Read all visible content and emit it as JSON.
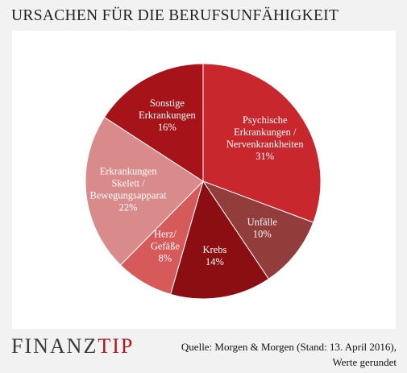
{
  "title": "URSACHEN FÜR DIE BERUFSUNFÄHIGKEIT",
  "logo": {
    "part1": "FINANZ",
    "part2": "TIP"
  },
  "source": {
    "line1": "Quelle: Morgen & Morgen (Stand: 13. April 2016),",
    "line2": "Werte gerundet"
  },
  "chart_data": {
    "type": "pie",
    "title": "URSACHEN FÜR DIE BERUFSUNFÄHIGKEIT",
    "start_angle_deg": 0,
    "direction": "clockwise",
    "slices": [
      {
        "label_lines": [
          "Psychische",
          "Erkrankungen /",
          "Nervenkrankheiten"
        ],
        "value": 31,
        "value_label": "31%",
        "color": "#c8282d"
      },
      {
        "label_lines": [
          "Unfälle"
        ],
        "value": 10,
        "value_label": "10%",
        "color": "#923c3c"
      },
      {
        "label_lines": [
          "Krebs"
        ],
        "value": 14,
        "value_label": "14%",
        "color": "#8a0e12"
      },
      {
        "label_lines": [
          "Herz/",
          "Gefäße"
        ],
        "value": 8,
        "value_label": "8%",
        "color": "#d65a5a"
      },
      {
        "label_lines": [
          "Erkrankungen",
          "Skelett /",
          "Bewegungsapparat"
        ],
        "value": 22,
        "value_label": "22%",
        "color": "#d98a8a"
      },
      {
        "label_lines": [
          "Sonstige",
          "Erkrankungen"
        ],
        "value": 16,
        "value_label": "16%",
        "color": "#a61419"
      }
    ]
  }
}
